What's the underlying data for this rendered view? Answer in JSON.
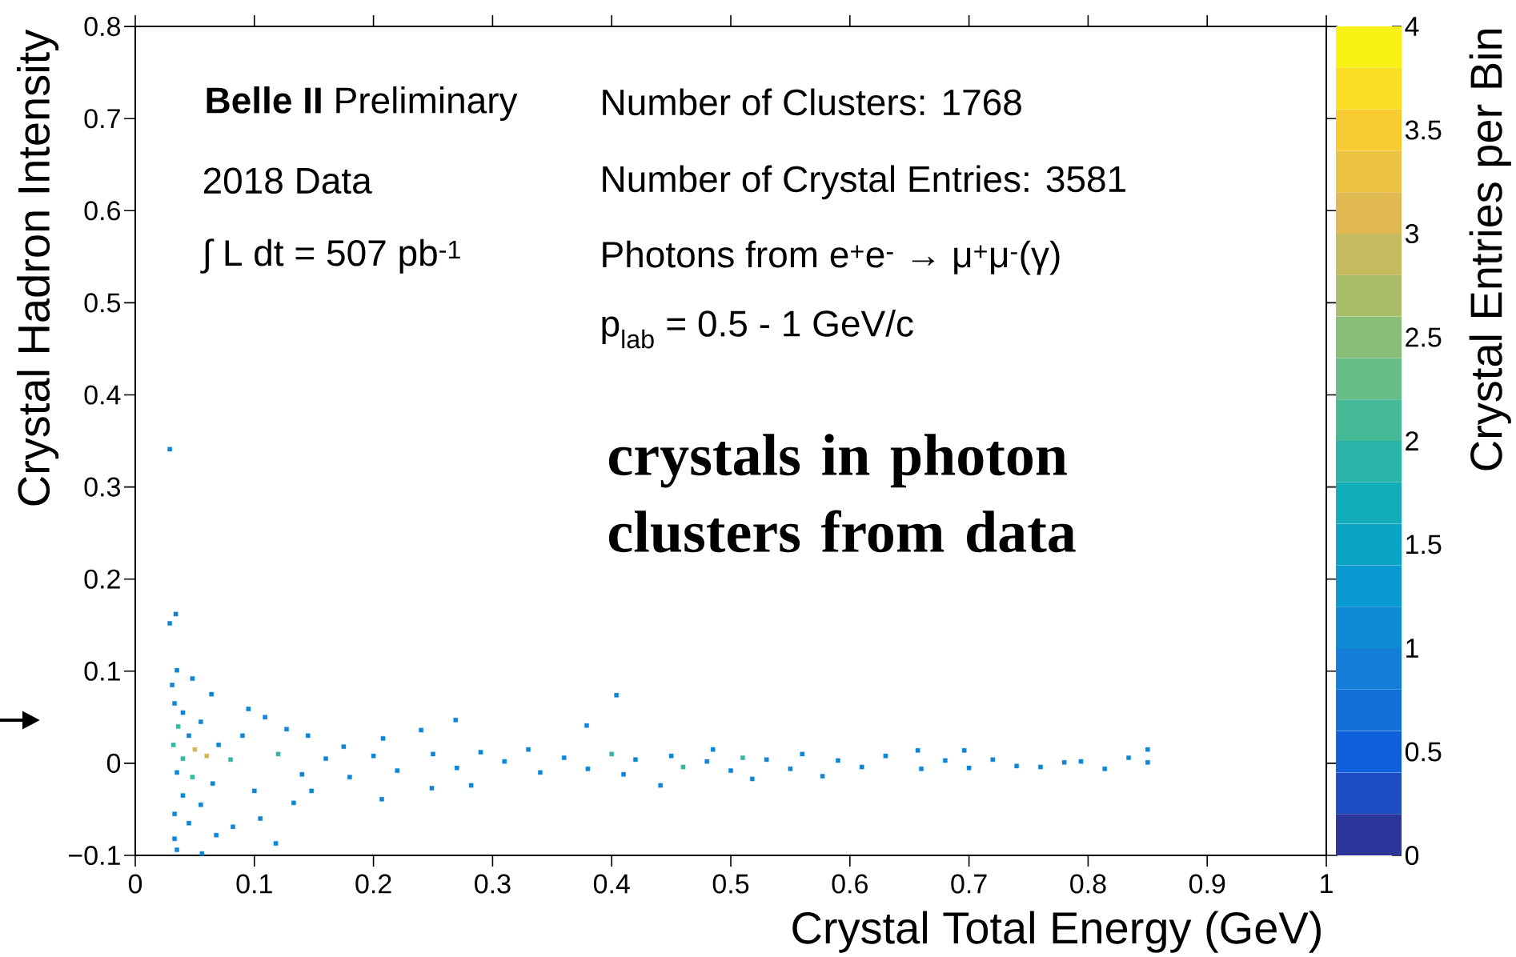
{
  "chart_data": {
    "type": "scatter",
    "xlabel": "Crystal Total Energy (GeV)",
    "ylabel": "Crystal Hadron Intensity",
    "clabel": "Crystal Entries per Bin",
    "annotations": [
      "**Belle II** Preliminary",
      "2018 Data",
      "∫ L dt = 507 pb$^{-1}$",
      "Number of Clusters: 1768",
      "Number of Crystal Entries: 3581",
      "Photons from e$^{+}$e$^{-}$ → μ$^{+}$μ$^{-}$(γ)",
      "p$_{lab}$ = 0.5 - 1 GeV/c",
      "crystals in photon clusters from data"
    ],
    "xlim": [
      0,
      1
    ],
    "ylim": [
      -0.1,
      0.8
    ],
    "xticks": [
      0,
      0.1,
      0.2,
      0.3,
      0.4,
      0.5,
      0.6,
      0.7,
      0.8,
      0.9,
      1
    ],
    "yticks": [
      {
        "value": -0.1,
        "label": "−0.1"
      },
      0,
      0.1,
      0.2,
      0.3,
      0.4,
      0.5,
      0.6,
      0.7,
      0.8
    ],
    "clim": [
      0,
      4
    ],
    "cticks": [
      0,
      0.5,
      1,
      1.5,
      2,
      2.5,
      3,
      3.5,
      4
    ],
    "marker": "square",
    "x": [
      0.029,
      0.029,
      0.034,
      0.035,
      0.048,
      0.031,
      0.033,
      0.04,
      0.064,
      0.055,
      0.036,
      0.045,
      0.032,
      0.05,
      0.04,
      0.06,
      0.07,
      0.08,
      0.035,
      0.048,
      0.065,
      0.04,
      0.055,
      0.033,
      0.045,
      0.033,
      0.035,
      0.056,
      0.068,
      0.082,
      0.095,
      0.09,
      0.1,
      0.105,
      0.109,
      0.118,
      0.12,
      0.127,
      0.133,
      0.14,
      0.145,
      0.148,
      0.16,
      0.175,
      0.18,
      0.2,
      0.208,
      0.207,
      0.22,
      0.24,
      0.249,
      0.25,
      0.269,
      0.27,
      0.282,
      0.29,
      0.31,
      0.33,
      0.34,
      0.36,
      0.379,
      0.38,
      0.4,
      0.404,
      0.41,
      0.42,
      0.441,
      0.45,
      0.46,
      0.48,
      0.485,
      0.5,
      0.51,
      0.518,
      0.53,
      0.55,
      0.56,
      0.577,
      0.59,
      0.61,
      0.63,
      0.657,
      0.66,
      0.68,
      0.696,
      0.7,
      0.72,
      0.74,
      0.76,
      0.78,
      0.794,
      0.814,
      0.834,
      0.85,
      0.85
    ],
    "values": [
      0.341,
      0.152,
      0.162,
      0.101,
      0.092,
      0.085,
      0.065,
      0.055,
      0.075,
      0.045,
      0.04,
      0.03,
      0.02,
      0.015,
      0.005,
      0.008,
      0.02,
      0.004,
      -0.01,
      -0.015,
      -0.022,
      -0.035,
      -0.045,
      -0.055,
      -0.065,
      -0.082,
      -0.094,
      -0.098,
      -0.078,
      -0.069,
      0.059,
      0.03,
      -0.03,
      -0.06,
      0.05,
      -0.087,
      0.01,
      0.037,
      -0.043,
      -0.012,
      0.03,
      -0.03,
      0.005,
      0.018,
      -0.015,
      0.008,
      0.027,
      -0.039,
      -0.008,
      0.036,
      -0.027,
      0.01,
      0.047,
      -0.005,
      -0.024,
      0.012,
      0.002,
      0.015,
      -0.01,
      0.006,
      0.041,
      -0.006,
      0.01,
      0.074,
      -0.012,
      0.004,
      -0.024,
      0.008,
      -0.004,
      0.002,
      0.015,
      -0.008,
      0.006,
      -0.017,
      0.004,
      -0.006,
      0.01,
      -0.014,
      0.003,
      -0.004,
      0.008,
      0.014,
      -0.006,
      0.003,
      0.014,
      -0.005,
      0.004,
      -0.003,
      -0.004,
      0.001,
      0.002,
      -0.006,
      0.006,
      0.015,
      0.001
    ],
    "cvalues": [
      1,
      1,
      1,
      1,
      1,
      1,
      1,
      1,
      1,
      1,
      2,
      1,
      2,
      3,
      2,
      3,
      1,
      2,
      1,
      2,
      1,
      1,
      1,
      1,
      1,
      1,
      1,
      1,
      1,
      1,
      1,
      1,
      1,
      1,
      1,
      1,
      2,
      1,
      1,
      1,
      1,
      1,
      1,
      1,
      1,
      1,
      1,
      1,
      1,
      1,
      1,
      1,
      1,
      1,
      1,
      1,
      1,
      1,
      1,
      1,
      1,
      1,
      2,
      1,
      1,
      1,
      1,
      1,
      2,
      1,
      1,
      1,
      2,
      1,
      1,
      1,
      1,
      1,
      1,
      1,
      1,
      1,
      1,
      1,
      1,
      1,
      1,
      1,
      1,
      1,
      1,
      1,
      1,
      1,
      1
    ]
  }
}
